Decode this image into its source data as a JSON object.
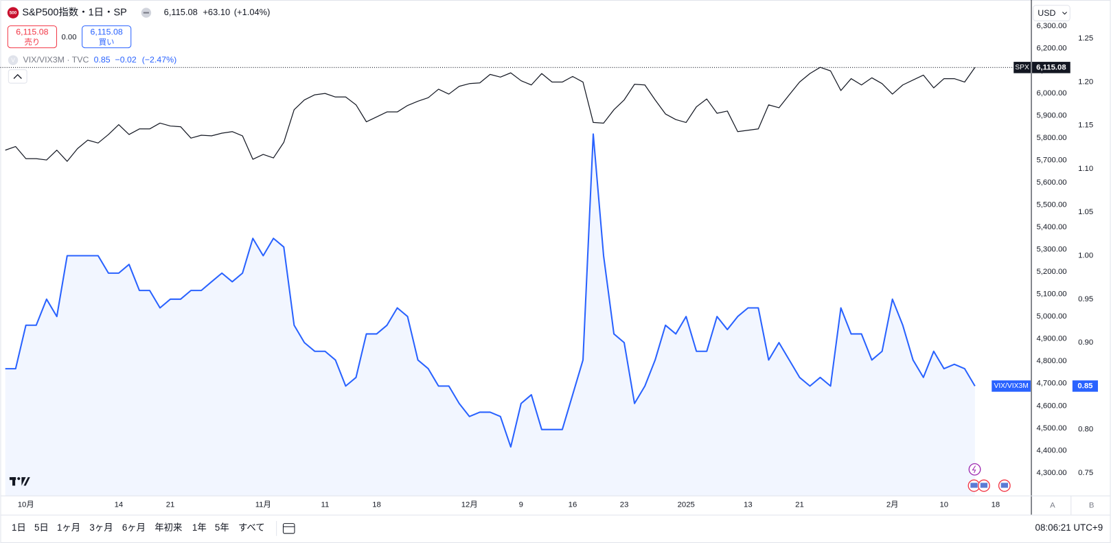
{
  "header": {
    "logo": "500",
    "symbol": "S&P500指数・1日・SP",
    "last": "6,115.08",
    "change": "+63.10",
    "change_pct": "(+1.04%)",
    "sell_price": "6,115.08",
    "sell": "売り",
    "spread": "0.00",
    "buy_price": "6,115.08",
    "buy": "買い",
    "overlay_icon": "V",
    "overlay": "VIX/VIX3M · TVC",
    "overlay_last": "0.85",
    "overlay_change": "−0.02",
    "overlay_change_pct": "(−2.47%)",
    "currency": "USD",
    "scale_modes": [
      "A",
      "B"
    ]
  },
  "toolbar": {
    "ranges": [
      "1日",
      "5日",
      "1ヶ月",
      "3ヶ月",
      "6ヶ月",
      "年初来",
      "1年",
      "5年",
      "すべて"
    ],
    "time": "08:06:21 UTC+9"
  },
  "chart_data": {
    "type": "line",
    "xlim": [
      -0.48,
      99.4
    ],
    "xticks": [
      {
        "value": 2,
        "label": "10月"
      },
      {
        "value": 11,
        "label": "14"
      },
      {
        "value": 16,
        "label": "21"
      },
      {
        "value": 25,
        "label": "11月"
      },
      {
        "value": 31,
        "label": "11"
      },
      {
        "value": 36,
        "label": "18"
      },
      {
        "value": 45,
        "label": "12月"
      },
      {
        "value": 50,
        "label": "9"
      },
      {
        "value": 55,
        "label": "16"
      },
      {
        "value": 60,
        "label": "23"
      },
      {
        "value": 66,
        "label": "2025"
      },
      {
        "value": 72,
        "label": "13"
      },
      {
        "value": 77,
        "label": "21"
      },
      {
        "value": 86,
        "label": "2月"
      },
      {
        "value": 91,
        "label": "10"
      },
      {
        "value": 96,
        "label": "18"
      }
    ],
    "ylim": [
      4198.5,
      6404.6
    ],
    "yticks": [
      {
        "value": 4300,
        "label": "4,300.00"
      },
      {
        "value": 4400,
        "label": "4,400.00"
      },
      {
        "value": 4500,
        "label": "4,500.00"
      },
      {
        "value": 4600,
        "label": "4,600.00"
      },
      {
        "value": 4700,
        "label": "4,700.00"
      },
      {
        "value": 4800,
        "label": "4,800.00"
      },
      {
        "value": 4900,
        "label": "4,900.00"
      },
      {
        "value": 5000,
        "label": "5,000.00"
      },
      {
        "value": 5100,
        "label": "5,100.00"
      },
      {
        "value": 5200,
        "label": "5,200.00"
      },
      {
        "value": 5300,
        "label": "5,300.00"
      },
      {
        "value": 5400,
        "label": "5,400.00"
      },
      {
        "value": 5500,
        "label": "5,500.00"
      },
      {
        "value": 5600,
        "label": "5,600.00"
      },
      {
        "value": 5700,
        "label": "5,700.00"
      },
      {
        "value": 5800,
        "label": "5,800.00"
      },
      {
        "value": 5900,
        "label": "5,900.00"
      },
      {
        "value": 6000,
        "label": "6,000.00"
      },
      {
        "value": 6100,
        "label": "6,100.00"
      },
      {
        "value": 6200,
        "label": "6,200.00"
      },
      {
        "value": 6300,
        "label": "6,300.00"
      }
    ],
    "y2lim": [
      0.724,
      1.291
    ],
    "y2ticks": [
      0.75,
      {
        "value": 0.8,
        "label": "0.80"
      },
      0.85,
      {
        "value": 0.9,
        "label": "0.90"
      },
      0.95,
      {
        "value": 1,
        "label": "1.00"
      },
      1.05,
      {
        "value": 1.1,
        "label": "1.10"
      },
      1.15,
      {
        "value": 1.2,
        "label": "1.20"
      },
      1.25
    ],
    "grid": false,
    "series": [
      {
        "name": "SPX",
        "color": "#131722",
        "last_label": "6,115.08",
        "values": [
          5745,
          5761,
          5707,
          5707,
          5701,
          5745,
          5695,
          5752,
          5790,
          5777,
          5815,
          5859,
          5815,
          5840,
          5840,
          5866,
          5853,
          5850,
          5799,
          5812,
          5809,
          5821,
          5828,
          5809,
          5704,
          5726,
          5710,
          5780,
          5926,
          5970,
          5993,
          5999,
          5983,
          5983,
          5948,
          5872,
          5894,
          5916,
          5916,
          5945,
          5964,
          5980,
          6018,
          5996,
          6031,
          6043,
          6046,
          6084,
          6072,
          6091,
          6056,
          6037,
          6088,
          6050,
          6050,
          6075,
          6050,
          5869,
          5866,
          5926,
          5970,
          6040,
          6037,
          5970,
          5907,
          5882,
          5869,
          5939,
          5974,
          5910,
          5920,
          5828,
          5834,
          5840,
          5948,
          5935,
          5993,
          6050,
          6088,
          6116,
          6100,
          6012,
          6065,
          6037,
          6069,
          6043,
          5996,
          6037,
          6059,
          6081,
          6024,
          6065,
          6065,
          6050,
          6115.08
        ]
      },
      {
        "name": "VIX/VIX3M",
        "color": "#2962ff",
        "axis": "y2",
        "area": true,
        "last_label": "0.85",
        "values": [
          0.87,
          0.87,
          0.92,
          0.92,
          0.95,
          0.93,
          1.0,
          1.0,
          1.0,
          1.0,
          0.98,
          0.98,
          0.99,
          0.96,
          0.96,
          0.94,
          0.95,
          0.95,
          0.96,
          0.96,
          0.97,
          0.98,
          0.97,
          0.98,
          1.02,
          1.0,
          1.02,
          1.01,
          0.92,
          0.9,
          0.89,
          0.89,
          0.88,
          0.85,
          0.86,
          0.91,
          0.91,
          0.92,
          0.94,
          0.93,
          0.88,
          0.87,
          0.85,
          0.85,
          0.83,
          0.815,
          0.82,
          0.82,
          0.815,
          0.78,
          0.83,
          0.84,
          0.8,
          0.8,
          0.8,
          0.84,
          0.88,
          1.14,
          1.0,
          0.91,
          0.9,
          0.83,
          0.85,
          0.88,
          0.92,
          0.91,
          0.93,
          0.89,
          0.89,
          0.93,
          0.915,
          0.93,
          0.94,
          0.94,
          0.88,
          0.9,
          0.88,
          0.86,
          0.85,
          0.86,
          0.85,
          0.94,
          0.91,
          0.91,
          0.88,
          0.89,
          0.95,
          0.92,
          0.88,
          0.86,
          0.89,
          0.87,
          0.875,
          0.87,
          0.85
        ]
      }
    ]
  }
}
